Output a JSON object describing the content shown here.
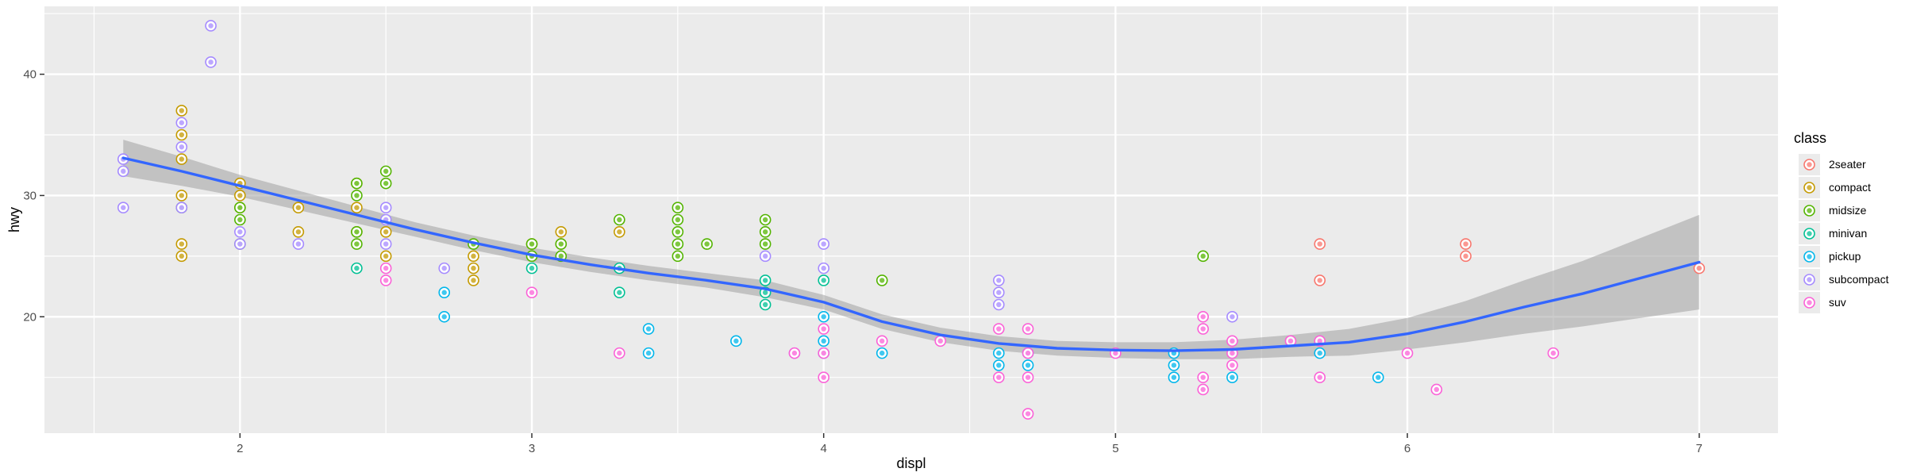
{
  "chart_data": {
    "type": "scatter",
    "title": "",
    "xlabel": "displ",
    "ylabel": "hwy",
    "xlim": [
      1.33,
      7.27
    ],
    "ylim": [
      10.4,
      45.6
    ],
    "x_ticks": [
      2,
      3,
      4,
      5,
      6,
      7
    ],
    "y_ticks": [
      20,
      30,
      40
    ],
    "grid": true,
    "legend": {
      "title": "class",
      "position": "right",
      "entries": [
        "2seater",
        "compact",
        "midsize",
        "minivan",
        "pickup",
        "subcompact",
        "suv"
      ]
    },
    "colors": {
      "2seater": "#F8766D",
      "compact": "#C49A00",
      "midsize": "#53B400",
      "minivan": "#00C094",
      "pickup": "#00B6EB",
      "subcompact": "#A58AFF",
      "suv": "#FB61D7",
      "smooth_line": "#3366FF",
      "confidence_band": "#999999",
      "panel_background": "#EBEBEB",
      "grid": "#FFFFFF"
    },
    "series": [
      {
        "name": "2seater",
        "points": [
          [
            5.7,
            26
          ],
          [
            5.7,
            23
          ],
          [
            6.2,
            26
          ],
          [
            6.2,
            25
          ],
          [
            7.0,
            24
          ]
        ]
      },
      {
        "name": "compact",
        "points": [
          [
            1.8,
            37
          ],
          [
            1.8,
            35
          ],
          [
            1.8,
            33
          ],
          [
            1.8,
            30
          ],
          [
            1.8,
            26
          ],
          [
            1.8,
            25
          ],
          [
            2.0,
            31
          ],
          [
            2.0,
            30
          ],
          [
            2.0,
            29
          ],
          [
            2.2,
            29
          ],
          [
            2.2,
            27
          ],
          [
            2.4,
            31
          ],
          [
            2.4,
            29
          ],
          [
            2.4,
            27
          ],
          [
            2.5,
            27
          ],
          [
            2.5,
            25
          ],
          [
            2.8,
            25
          ],
          [
            2.8,
            24
          ],
          [
            2.8,
            23
          ],
          [
            3.0,
            26
          ],
          [
            3.1,
            27
          ],
          [
            3.1,
            26
          ],
          [
            3.3,
            27
          ]
        ]
      },
      {
        "name": "midsize",
        "points": [
          [
            1.8,
            29
          ],
          [
            2.0,
            29
          ],
          [
            2.0,
            28
          ],
          [
            2.0,
            26
          ],
          [
            2.4,
            31
          ],
          [
            2.4,
            30
          ],
          [
            2.4,
            27
          ],
          [
            2.4,
            26
          ],
          [
            2.5,
            32
          ],
          [
            2.5,
            31
          ],
          [
            2.8,
            26
          ],
          [
            3.0,
            26
          ],
          [
            3.0,
            25
          ],
          [
            3.1,
            26
          ],
          [
            3.1,
            25
          ],
          [
            3.3,
            28
          ],
          [
            3.5,
            29
          ],
          [
            3.5,
            28
          ],
          [
            3.5,
            27
          ],
          [
            3.5,
            26
          ],
          [
            3.5,
            25
          ],
          [
            3.6,
            26
          ],
          [
            3.8,
            28
          ],
          [
            3.8,
            27
          ],
          [
            3.8,
            26
          ],
          [
            4.2,
            23
          ],
          [
            5.3,
            25
          ]
        ]
      },
      {
        "name": "minivan",
        "points": [
          [
            2.4,
            24
          ],
          [
            3.0,
            24
          ],
          [
            3.3,
            24
          ],
          [
            3.3,
            22
          ],
          [
            3.8,
            23
          ],
          [
            3.8,
            22
          ],
          [
            3.8,
            21
          ],
          [
            4.0,
            23
          ]
        ]
      },
      {
        "name": "pickup",
        "points": [
          [
            2.7,
            22
          ],
          [
            2.7,
            20
          ],
          [
            3.4,
            19
          ],
          [
            3.4,
            17
          ],
          [
            3.7,
            18
          ],
          [
            4.0,
            20
          ],
          [
            4.0,
            18
          ],
          [
            4.0,
            17
          ],
          [
            4.2,
            17
          ],
          [
            4.6,
            17
          ],
          [
            4.6,
            16
          ],
          [
            4.7,
            17
          ],
          [
            4.7,
            16
          ],
          [
            5.2,
            17
          ],
          [
            5.2,
            16
          ],
          [
            5.2,
            15
          ],
          [
            5.4,
            15
          ],
          [
            5.7,
            17
          ],
          [
            5.9,
            15
          ]
        ]
      },
      {
        "name": "subcompact",
        "points": [
          [
            1.6,
            33
          ],
          [
            1.6,
            32
          ],
          [
            1.6,
            29
          ],
          [
            1.8,
            36
          ],
          [
            1.8,
            34
          ],
          [
            1.8,
            29
          ],
          [
            1.9,
            44
          ],
          [
            1.9,
            41
          ],
          [
            2.0,
            27
          ],
          [
            2.0,
            26
          ],
          [
            2.2,
            26
          ],
          [
            2.5,
            29
          ],
          [
            2.5,
            28
          ],
          [
            2.5,
            26
          ],
          [
            2.7,
            24
          ],
          [
            3.8,
            25
          ],
          [
            3.9,
            17
          ],
          [
            4.0,
            26
          ],
          [
            4.0,
            24
          ],
          [
            4.6,
            23
          ],
          [
            4.6,
            22
          ],
          [
            4.6,
            21
          ],
          [
            5.4,
            20
          ]
        ]
      },
      {
        "name": "suv",
        "points": [
          [
            2.5,
            24
          ],
          [
            2.5,
            23
          ],
          [
            3.0,
            22
          ],
          [
            3.3,
            17
          ],
          [
            3.9,
            17
          ],
          [
            4.0,
            19
          ],
          [
            4.0,
            17
          ],
          [
            4.0,
            15
          ],
          [
            4.2,
            18
          ],
          [
            4.4,
            18
          ],
          [
            4.6,
            19
          ],
          [
            4.6,
            15
          ],
          [
            4.7,
            19
          ],
          [
            4.7,
            17
          ],
          [
            4.7,
            15
          ],
          [
            4.7,
            12
          ],
          [
            5.0,
            17
          ],
          [
            5.3,
            20
          ],
          [
            5.3,
            19
          ],
          [
            5.3,
            15
          ],
          [
            5.3,
            14
          ],
          [
            5.4,
            18
          ],
          [
            5.4,
            17
          ],
          [
            5.4,
            16
          ],
          [
            5.6,
            18
          ],
          [
            5.7,
            18
          ],
          [
            5.7,
            15
          ],
          [
            6.0,
            17
          ],
          [
            6.1,
            14
          ],
          [
            6.5,
            17
          ]
        ]
      }
    ],
    "smooth": {
      "method": "loess",
      "line": [
        [
          1.6,
          33.1
        ],
        [
          1.8,
          32.0
        ],
        [
          2.0,
          30.8
        ],
        [
          2.2,
          29.6
        ],
        [
          2.4,
          28.4
        ],
        [
          2.6,
          27.2
        ],
        [
          2.8,
          26.1
        ],
        [
          3.0,
          25.1
        ],
        [
          3.2,
          24.3
        ],
        [
          3.4,
          23.6
        ],
        [
          3.6,
          23.0
        ],
        [
          3.8,
          22.3
        ],
        [
          4.0,
          21.2
        ],
        [
          4.2,
          19.6
        ],
        [
          4.4,
          18.5
        ],
        [
          4.6,
          17.8
        ],
        [
          4.8,
          17.4
        ],
        [
          5.0,
          17.25
        ],
        [
          5.2,
          17.2
        ],
        [
          5.4,
          17.3
        ],
        [
          5.6,
          17.6
        ],
        [
          5.8,
          17.9
        ],
        [
          6.0,
          18.6
        ],
        [
          6.2,
          19.6
        ],
        [
          6.4,
          20.8
        ],
        [
          6.6,
          21.9
        ],
        [
          6.8,
          23.2
        ],
        [
          7.0,
          24.5
        ]
      ],
      "band": [
        [
          1.6,
          31.6,
          34.6
        ],
        [
          1.8,
          30.8,
          33.2
        ],
        [
          2.0,
          29.9,
          31.7
        ],
        [
          2.2,
          28.8,
          30.4
        ],
        [
          2.4,
          27.7,
          29.1
        ],
        [
          2.6,
          26.6,
          27.8
        ],
        [
          2.8,
          25.5,
          26.7
        ],
        [
          3.0,
          24.5,
          25.7
        ],
        [
          3.2,
          23.7,
          24.9
        ],
        [
          3.4,
          23.0,
          24.2
        ],
        [
          3.6,
          22.4,
          23.6
        ],
        [
          3.8,
          21.6,
          23.0
        ],
        [
          4.0,
          20.6,
          21.8
        ],
        [
          4.2,
          19.0,
          20.2
        ],
        [
          4.4,
          17.9,
          19.1
        ],
        [
          4.6,
          17.2,
          18.4
        ],
        [
          4.8,
          16.8,
          18.0
        ],
        [
          5.0,
          16.6,
          17.9
        ],
        [
          5.2,
          16.5,
          17.9
        ],
        [
          5.4,
          16.5,
          18.1
        ],
        [
          5.6,
          16.7,
          18.5
        ],
        [
          5.8,
          16.8,
          19.0
        ],
        [
          6.0,
          17.3,
          19.9
        ],
        [
          6.2,
          17.9,
          21.3
        ],
        [
          6.4,
          18.6,
          23.0
        ],
        [
          6.6,
          19.2,
          24.6
        ],
        [
          6.8,
          19.9,
          26.5
        ],
        [
          7.0,
          20.6,
          28.4
        ]
      ]
    }
  }
}
